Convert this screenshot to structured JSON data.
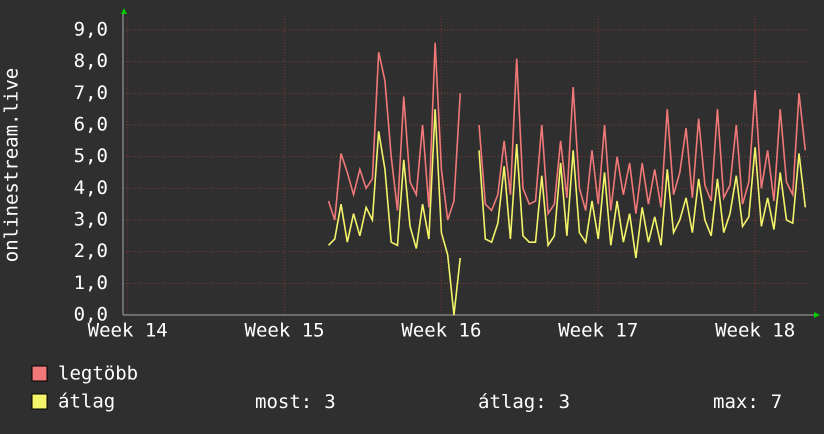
{
  "chart_data": {
    "type": "line",
    "ylabel": "onlinestream.live",
    "x": [
      15.28,
      15.32,
      15.36,
      15.4,
      15.44,
      15.48,
      15.52,
      15.56,
      15.6,
      15.64,
      15.68,
      15.72,
      15.76,
      15.8,
      15.84,
      15.88,
      15.92,
      15.96,
      16.0,
      16.04,
      16.08,
      16.12,
      16.16,
      16.2,
      16.24,
      16.28,
      16.32,
      16.36,
      16.4,
      16.44,
      16.48,
      16.52,
      16.56,
      16.6,
      16.64,
      16.68,
      16.72,
      16.76,
      16.8,
      16.84,
      16.88,
      16.92,
      16.96,
      17.0,
      17.04,
      17.08,
      17.12,
      17.16,
      17.2,
      17.24,
      17.28,
      17.32,
      17.36,
      17.4,
      17.44,
      17.48,
      17.52,
      17.56,
      17.6,
      17.64,
      17.68,
      17.72,
      17.76,
      17.8,
      17.84,
      17.88,
      17.92,
      17.96,
      18.0,
      18.04,
      18.08,
      18.12,
      18.16,
      18.2,
      18.24,
      18.28,
      18.32
    ],
    "series": [
      {
        "name": "legtöbb",
        "color": "#f07878",
        "values": [
          3.6,
          3.0,
          5.1,
          4.5,
          3.8,
          4.6,
          4.0,
          4.3,
          8.3,
          7.4,
          5.0,
          3.3,
          6.9,
          4.2,
          3.8,
          6.0,
          3.4,
          8.6,
          4.6,
          3.0,
          3.6,
          7.0,
          null,
          null,
          6.0,
          3.5,
          3.3,
          3.8,
          5.5,
          3.8,
          8.1,
          4.0,
          3.5,
          3.6,
          6.0,
          3.2,
          3.5,
          5.5,
          3.7,
          7.2,
          4.0,
          3.3,
          5.2,
          3.5,
          6.0,
          3.3,
          5.0,
          3.8,
          4.8,
          3.2,
          4.8,
          3.5,
          4.6,
          3.4,
          6.5,
          3.8,
          4.5,
          5.9,
          3.7,
          6.2,
          4.1,
          3.6,
          6.5,
          3.7,
          4.1,
          6.0,
          3.5,
          4.2,
          7.1,
          4.0,
          5.2,
          3.6,
          6.5,
          4.2,
          3.8,
          7.0,
          5.2
        ]
      },
      {
        "name": "átlag",
        "color": "#f4f46a",
        "values": [
          2.2,
          2.4,
          3.5,
          2.3,
          3.2,
          2.5,
          3.4,
          3.0,
          5.8,
          4.6,
          2.3,
          2.2,
          4.9,
          2.8,
          2.1,
          3.5,
          2.4,
          6.5,
          2.6,
          1.9,
          0.0,
          1.8,
          null,
          null,
          5.2,
          2.4,
          2.3,
          2.9,
          4.7,
          2.4,
          5.4,
          2.5,
          2.3,
          2.3,
          4.4,
          2.2,
          2.5,
          4.8,
          2.5,
          5.2,
          2.6,
          2.3,
          3.6,
          2.4,
          4.5,
          2.2,
          3.6,
          2.3,
          3.2,
          1.8,
          3.4,
          2.3,
          3.1,
          2.2,
          4.6,
          2.6,
          3.0,
          3.7,
          2.6,
          4.3,
          3.0,
          2.5,
          4.3,
          2.6,
          3.2,
          4.4,
          2.8,
          3.1,
          5.3,
          2.8,
          3.7,
          2.7,
          4.5,
          3.0,
          2.9,
          5.1,
          3.4
        ]
      }
    ],
    "xlim": [
      13.97,
      18.35
    ],
    "xticks": [
      {
        "value": 14,
        "label": "Week 14"
      },
      {
        "value": 15,
        "label": "Week 15"
      },
      {
        "value": 16,
        "label": "Week 16"
      },
      {
        "value": 17,
        "label": "Week 17"
      },
      {
        "value": 18,
        "label": "Week 18"
      }
    ],
    "ylim": [
      0,
      9
    ],
    "yticks": [
      {
        "value": 0,
        "label": "0,0"
      },
      {
        "value": 1,
        "label": "1,0"
      },
      {
        "value": 2,
        "label": "2,0"
      },
      {
        "value": 3,
        "label": "3,0"
      },
      {
        "value": 4,
        "label": "4,0"
      },
      {
        "value": 5,
        "label": "5,0"
      },
      {
        "value": 6,
        "label": "6,0"
      },
      {
        "value": 7,
        "label": "7,0"
      },
      {
        "value": 8,
        "label": "8,0"
      },
      {
        "value": 9,
        "label": "9,0"
      }
    ],
    "grid": true,
    "stats": [
      {
        "label": "most:",
        "value": 3
      },
      {
        "label": "átlag:",
        "value": 3
      },
      {
        "label": "max:",
        "value": 7
      }
    ]
  }
}
